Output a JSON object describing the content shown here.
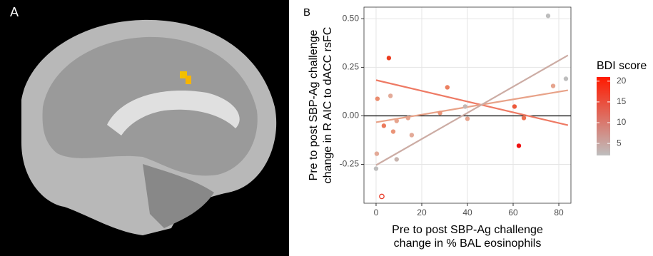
{
  "panel_a": {
    "label": "A"
  },
  "chart_data": {
    "type": "scatter",
    "panel_label": "B",
    "xlabel": [
      "Pre to post SBP-Ag challenge",
      "change in % BAL eosinophils"
    ],
    "ylabel": [
      "Pre to post SBP-Ag challenge",
      "change in R AIC to dACC rsFC"
    ],
    "xlim": [
      -5.3,
      85.3
    ],
    "ylim": [
      -0.45,
      0.56
    ],
    "xticks": [
      0,
      20,
      40,
      60,
      80
    ],
    "yticks": [
      {
        "value": 0.5,
        "label": "0.50"
      },
      0.25,
      {
        "value": 0,
        "label": "0.00"
      },
      -0.25
    ],
    "grid": true,
    "hline": 0,
    "points": [
      {
        "x": 75.3,
        "y": 0.515,
        "color": "#bdbdbd"
      },
      {
        "x": 5.6,
        "y": 0.298,
        "color": "#ec3d20"
      },
      {
        "x": 83.1,
        "y": 0.191,
        "color": "#bdbdbd"
      },
      {
        "x": 77.5,
        "y": 0.154,
        "color": "#e6a48e"
      },
      {
        "x": 0.6,
        "y": 0.088,
        "color": "#ea8c6e"
      },
      {
        "x": 6.3,
        "y": 0.103,
        "color": "#e3aa98"
      },
      {
        "x": 31.2,
        "y": 0.147,
        "color": "#ec8060"
      },
      {
        "x": 3.4,
        "y": -0.051,
        "color": "#ec7a5c"
      },
      {
        "x": 7.5,
        "y": -0.081,
        "color": "#ea9478"
      },
      {
        "x": 9,
        "y": -0.026,
        "color": "#e6a48e"
      },
      {
        "x": 14,
        "y": -0.011,
        "color": "#e6a48e"
      },
      {
        "x": 15.6,
        "y": -0.099,
        "color": "#e3aa98"
      },
      {
        "x": 28,
        "y": 0.015,
        "color": "#ea9478"
      },
      {
        "x": 39,
        "y": 0.048,
        "color": "#c4b8b4"
      },
      {
        "x": 40,
        "y": -0.015,
        "color": "#e6a48e"
      },
      {
        "x": 60.6,
        "y": 0.048,
        "color": "#ec5a3c"
      },
      {
        "x": 64.7,
        "y": -0.011,
        "color": "#ec7050"
      },
      {
        "x": 62.5,
        "y": -0.154,
        "color": "#f01010"
      },
      {
        "x": 0.3,
        "y": -0.195,
        "color": "#e3aa98"
      },
      {
        "x": 0,
        "y": -0.272,
        "color": "#bdbdbd"
      },
      {
        "x": 9,
        "y": -0.224,
        "color": "#c8b4ae"
      },
      {
        "x": 2.5,
        "y": -0.415,
        "color": "#e8301c",
        "hollow": true
      }
    ],
    "lines": [
      {
        "color": "#ee7a64",
        "x": [
          0,
          84
        ],
        "values": [
          0.184,
          -0.048
        ]
      },
      {
        "color": "#e8a288",
        "x": [
          0,
          84
        ],
        "values": [
          -0.033,
          0.132
        ]
      },
      {
        "color": "#ccaca4",
        "x": [
          0,
          84
        ],
        "values": [
          -0.254,
          0.312
        ]
      }
    ],
    "colorbar": {
      "title": "BDI score",
      "low": "#bebebe",
      "high": "#ff1a00",
      "lim": [
        2.1,
        21
      ],
      "ticks": [
        5,
        10,
        15,
        20
      ]
    }
  }
}
